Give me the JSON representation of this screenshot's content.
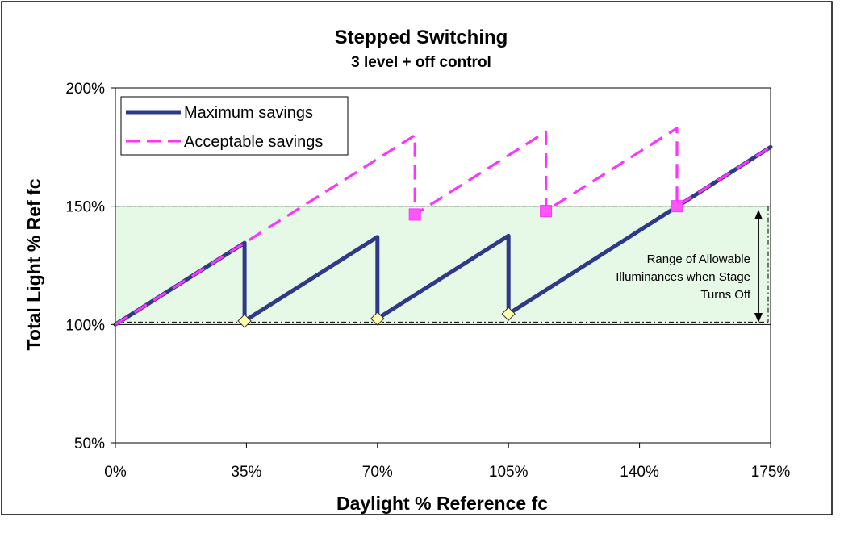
{
  "chart_data": {
    "type": "line",
    "title": "Stepped Switching",
    "subtitle": "3 level + off control",
    "xlabel": "Daylight %  Reference fc",
    "ylabel": "Total Light % Ref fc",
    "xlim": [
      0,
      175
    ],
    "ylim": [
      50,
      200
    ],
    "x_ticks": [
      "0%",
      "35%",
      "70%",
      "105%",
      "140%",
      "175%"
    ],
    "y_ticks": [
      "50%",
      "100%",
      "150%",
      "200%"
    ],
    "x_tick_values": [
      0,
      35,
      70,
      105,
      140,
      175
    ],
    "y_tick_values": [
      50,
      100,
      150,
      200
    ],
    "legend_position": "top-left",
    "band": {
      "y_min": 101,
      "y_max": 150,
      "color": "#e6f8e6"
    },
    "annotation": "Range of Allowable\nIlluminances when Stage\nTurns Off",
    "series": [
      {
        "name": "Maximum savings",
        "color": "#2e3a87",
        "style": "solid",
        "points": [
          [
            0,
            100
          ],
          [
            34.5,
            134.5
          ],
          [
            34.5,
            101.5
          ],
          [
            70,
            137
          ],
          [
            70,
            102.5
          ],
          [
            105,
            137.5
          ],
          [
            105,
            104.5
          ],
          [
            175,
            175
          ]
        ],
        "markers": [
          [
            34.5,
            101.5
          ],
          [
            70,
            102.5
          ],
          [
            105,
            104.5
          ]
        ],
        "marker_shape": "diamond",
        "marker_color": "#ffffb0"
      },
      {
        "name": "Acceptable savings",
        "color": "#ff33ff",
        "style": "dashed",
        "points": [
          [
            0,
            100
          ],
          [
            80,
            180
          ],
          [
            80,
            146.5
          ],
          [
            115,
            181.5
          ],
          [
            115,
            148
          ],
          [
            150,
            183
          ],
          [
            150,
            150
          ],
          [
            175,
            175
          ]
        ],
        "markers": [
          [
            80,
            146.5
          ],
          [
            115,
            148
          ],
          [
            150,
            150
          ]
        ],
        "marker_shape": "square",
        "marker_color": "#ff55ff"
      }
    ]
  }
}
